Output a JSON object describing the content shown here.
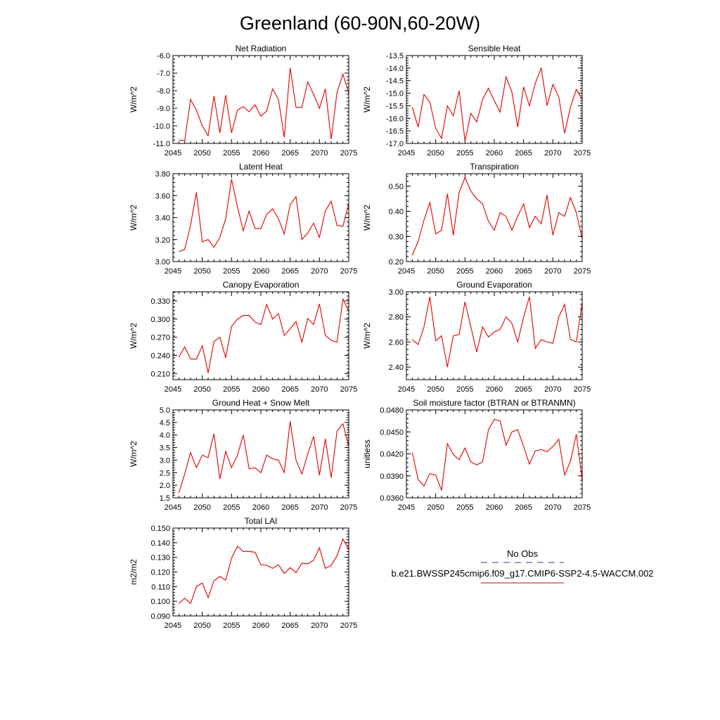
{
  "figure": {
    "title": "Greenland (60-90N,60-20W)"
  },
  "legend": {
    "entries": [
      {
        "label": "No Obs",
        "color": "#3333aa",
        "style": "dashed"
      },
      {
        "label": "b.e21.BWSSP245cmip6.f09_g17.CMIP6-SSP2-4.5-WACCM.002",
        "color": "#e00000",
        "style": "solid"
      }
    ]
  },
  "chart_data": [
    {
      "type": "line",
      "title": "Net Radiation",
      "ylabel": "W/m^2",
      "xlim": [
        2045,
        2075
      ],
      "ylim": [
        -11.0,
        -6.0
      ],
      "yticks": [
        "-6.0",
        "-7.0",
        "-8.0",
        "-9.0",
        "-10.0",
        "-11.0"
      ],
      "xticks": [
        "2045",
        "2050",
        "2055",
        "2060",
        "2065",
        "2070",
        "2075"
      ],
      "series": [
        {
          "color": "#e00000",
          "x": [
            2046,
            2047,
            2048,
            2049,
            2050,
            2051,
            2052,
            2053,
            2054,
            2055,
            2056,
            2057,
            2058,
            2059,
            2060,
            2061,
            2062,
            2063,
            2064,
            2065,
            2066,
            2067,
            2068,
            2069,
            2070,
            2071,
            2072,
            2073,
            2074,
            2075
          ],
          "values": [
            -10.8,
            -10.85,
            -8.5,
            -9.1,
            -10.0,
            -10.55,
            -8.3,
            -10.4,
            -8.25,
            -10.4,
            -9.1,
            -8.9,
            -9.2,
            -8.8,
            -9.45,
            -9.15,
            -7.9,
            -8.5,
            -10.65,
            -6.7,
            -8.95,
            -8.95,
            -7.5,
            -8.2,
            -9.0,
            -7.9,
            -10.75,
            -8.1,
            -7.05,
            -8.15
          ]
        }
      ]
    },
    {
      "type": "line",
      "title": "Sensible Heat",
      "ylabel": "W/m^2",
      "xlim": [
        2045,
        2075
      ],
      "ylim": [
        -17.0,
        -13.5
      ],
      "yticks": [
        "-13.5",
        "-14.0",
        "-14.5",
        "-15.0",
        "-15.5",
        "-16.0",
        "-16.5",
        "-17.0"
      ],
      "xticks": [
        "2045",
        "2050",
        "2055",
        "2060",
        "2065",
        "2070",
        "2075"
      ],
      "series": [
        {
          "color": "#e00000",
          "x": [
            2046,
            2047,
            2048,
            2049,
            2050,
            2051,
            2052,
            2053,
            2054,
            2055,
            2056,
            2057,
            2058,
            2059,
            2060,
            2061,
            2062,
            2063,
            2064,
            2065,
            2066,
            2067,
            2068,
            2069,
            2070,
            2071,
            2072,
            2073,
            2074,
            2075
          ],
          "values": [
            -15.55,
            -16.35,
            -15.05,
            -15.35,
            -16.4,
            -16.8,
            -15.5,
            -15.9,
            -14.9,
            -16.9,
            -15.8,
            -16.15,
            -15.25,
            -14.8,
            -15.3,
            -15.75,
            -14.35,
            -14.95,
            -16.35,
            -14.75,
            -15.5,
            -14.6,
            -14.0,
            -15.5,
            -14.65,
            -15.15,
            -16.6,
            -15.55,
            -14.85,
            -15.25
          ]
        }
      ]
    },
    {
      "type": "line",
      "title": "Latent Heat",
      "ylabel": "W/m^2",
      "xlim": [
        2045,
        2075
      ],
      "ylim": [
        3.0,
        3.8
      ],
      "yticks": [
        "3.80",
        "3.60",
        "3.40",
        "3.20",
        "3.00"
      ],
      "xticks": [
        "2045",
        "2050",
        "2055",
        "2060",
        "2065",
        "2070",
        "2075"
      ],
      "series": [
        {
          "color": "#e00000",
          "x": [
            2046,
            2047,
            2048,
            2049,
            2050,
            2051,
            2052,
            2053,
            2054,
            2055,
            2056,
            2057,
            2058,
            2059,
            2060,
            2061,
            2062,
            2063,
            2064,
            2065,
            2066,
            2067,
            2068,
            2069,
            2070,
            2071,
            2072,
            2073,
            2074,
            2075
          ],
          "values": [
            3.09,
            3.11,
            3.33,
            3.63,
            3.18,
            3.2,
            3.13,
            3.22,
            3.39,
            3.75,
            3.5,
            3.28,
            3.46,
            3.3,
            3.3,
            3.43,
            3.48,
            3.39,
            3.25,
            3.52,
            3.59,
            3.2,
            3.26,
            3.35,
            3.22,
            3.46,
            3.55,
            3.33,
            3.32,
            3.53
          ]
        }
      ]
    },
    {
      "type": "line",
      "title": "Transpiration",
      "ylabel": "W/m^2",
      "xlim": [
        2045,
        2075
      ],
      "ylim": [
        0.2,
        0.55
      ],
      "yticks": [
        "0.50",
        "0.40",
        "0.30",
        "0.20"
      ],
      "xticks": [
        "2045",
        "2050",
        "2055",
        "2060",
        "2065",
        "2070",
        "2075"
      ],
      "series": [
        {
          "color": "#e00000",
          "x": [
            2046,
            2047,
            2048,
            2049,
            2050,
            2051,
            2052,
            2053,
            2054,
            2055,
            2056,
            2057,
            2058,
            2059,
            2060,
            2061,
            2062,
            2063,
            2064,
            2065,
            2066,
            2067,
            2068,
            2069,
            2070,
            2071,
            2072,
            2073,
            2074,
            2075
          ],
          "values": [
            0.225,
            0.28,
            0.365,
            0.435,
            0.31,
            0.325,
            0.47,
            0.305,
            0.475,
            0.535,
            0.48,
            0.45,
            0.43,
            0.36,
            0.325,
            0.395,
            0.38,
            0.325,
            0.38,
            0.43,
            0.335,
            0.38,
            0.35,
            0.465,
            0.305,
            0.395,
            0.38,
            0.455,
            0.395,
            0.29
          ]
        }
      ]
    },
    {
      "type": "line",
      "title": "Canopy Evaporation",
      "ylabel": "W/m^2",
      "xlim": [
        2045,
        2075
      ],
      "ylim": [
        0.2,
        0.345
      ],
      "yticks": [
        "0.330",
        "0.300",
        "0.270",
        "0.240",
        "0.210"
      ],
      "xticks": [
        "2045",
        "2050",
        "2055",
        "2060",
        "2065",
        "2070",
        "2075"
      ],
      "series": [
        {
          "color": "#e00000",
          "x": [
            2046,
            2047,
            2048,
            2049,
            2050,
            2051,
            2052,
            2053,
            2054,
            2055,
            2056,
            2057,
            2058,
            2059,
            2060,
            2061,
            2062,
            2063,
            2064,
            2065,
            2066,
            2067,
            2068,
            2069,
            2070,
            2071,
            2072,
            2073,
            2074,
            2075
          ],
          "values": [
            0.237,
            0.254,
            0.234,
            0.234,
            0.256,
            0.211,
            0.263,
            0.27,
            0.236,
            0.288,
            0.3,
            0.306,
            0.306,
            0.295,
            0.291,
            0.324,
            0.3,
            0.309,
            0.273,
            0.284,
            0.296,
            0.262,
            0.301,
            0.291,
            0.325,
            0.273,
            0.265,
            0.262,
            0.333,
            0.313
          ]
        }
      ]
    },
    {
      "type": "line",
      "title": "Ground Evaporation",
      "ylabel": "W/m^2",
      "xlim": [
        2045,
        2075
      ],
      "ylim": [
        2.3,
        3.0
      ],
      "yticks": [
        "3.00",
        "2.80",
        "2.60",
        "2.40"
      ],
      "xticks": [
        "2045",
        "2050",
        "2055",
        "2060",
        "2065",
        "2070",
        "2075"
      ],
      "series": [
        {
          "color": "#e00000",
          "x": [
            2046,
            2047,
            2048,
            2049,
            2050,
            2051,
            2052,
            2053,
            2054,
            2055,
            2056,
            2057,
            2058,
            2059,
            2060,
            2061,
            2062,
            2063,
            2064,
            2065,
            2066,
            2067,
            2068,
            2069,
            2070,
            2071,
            2072,
            2073,
            2074,
            2075
          ],
          "values": [
            2.62,
            2.58,
            2.72,
            2.96,
            2.61,
            2.65,
            2.4,
            2.65,
            2.66,
            2.92,
            2.72,
            2.52,
            2.72,
            2.64,
            2.68,
            2.7,
            2.8,
            2.75,
            2.6,
            2.8,
            2.96,
            2.55,
            2.62,
            2.6,
            2.59,
            2.8,
            2.9,
            2.62,
            2.6,
            2.91
          ]
        }
      ]
    },
    {
      "type": "line",
      "title": "Ground Heat + Snow Melt",
      "ylabel": "W/m^2",
      "xlim": [
        2045,
        2075
      ],
      "ylim": [
        1.5,
        5.0
      ],
      "yticks": [
        "5.0",
        "4.5",
        "4.0",
        "3.5",
        "3.0",
        "2.5",
        "2.0",
        "1.5"
      ],
      "xticks": [
        "2045",
        "2050",
        "2055",
        "2060",
        "2065",
        "2070",
        "2075"
      ],
      "series": [
        {
          "color": "#e00000",
          "x": [
            2046,
            2047,
            2048,
            2049,
            2050,
            2051,
            2052,
            2053,
            2054,
            2055,
            2056,
            2057,
            2058,
            2059,
            2060,
            2061,
            2062,
            2063,
            2064,
            2065,
            2066,
            2067,
            2068,
            2069,
            2070,
            2071,
            2072,
            2073,
            2074,
            2075
          ],
          "values": [
            1.7,
            2.45,
            3.3,
            2.7,
            3.2,
            3.1,
            4.05,
            2.25,
            3.35,
            2.7,
            3.2,
            4.0,
            2.65,
            2.7,
            2.5,
            3.2,
            3.05,
            3.0,
            2.5,
            4.55,
            3.0,
            2.45,
            3.25,
            3.95,
            2.4,
            3.85,
            2.3,
            4.15,
            4.45,
            3.55
          ]
        }
      ]
    },
    {
      "type": "line",
      "title": "Soil moisture factor (BTRAN or BTRANMN)",
      "ylabel": "unitless",
      "xlim": [
        2045,
        2075
      ],
      "ylim": [
        0.036,
        0.048
      ],
      "yticks": [
        "0.0480",
        "0.0450",
        "0.0420",
        "0.0390",
        "0.0360"
      ],
      "xticks": [
        "2045",
        "2050",
        "2055",
        "2060",
        "2065",
        "2070",
        "2075"
      ],
      "series": [
        {
          "color": "#e00000",
          "x": [
            2046,
            2047,
            2048,
            2049,
            2050,
            2051,
            2052,
            2053,
            2054,
            2055,
            2056,
            2057,
            2058,
            2059,
            2060,
            2061,
            2062,
            2063,
            2064,
            2065,
            2066,
            2067,
            2068,
            2069,
            2070,
            2071,
            2072,
            2073,
            2074,
            2075
          ],
          "values": [
            0.0422,
            0.0385,
            0.0376,
            0.0393,
            0.0391,
            0.037,
            0.0434,
            0.0419,
            0.0412,
            0.0428,
            0.0409,
            0.0405,
            0.0409,
            0.0453,
            0.0467,
            0.0465,
            0.0432,
            0.045,
            0.0453,
            0.043,
            0.0406,
            0.0424,
            0.0426,
            0.0423,
            0.043,
            0.044,
            0.0391,
            0.041,
            0.0447,
            0.0384
          ]
        }
      ]
    },
    {
      "type": "line",
      "title": "Total LAI",
      "ylabel": "m2/m2",
      "xlim": [
        2045,
        2075
      ],
      "ylim": [
        0.09,
        0.15
      ],
      "yticks": [
        "0.150",
        "0.140",
        "0.130",
        "0.120",
        "0.110",
        "0.100",
        "0.090"
      ],
      "xticks": [
        "2045",
        "2050",
        "2055",
        "2060",
        "2065",
        "2070",
        "2075"
      ],
      "series": [
        {
          "color": "#e00000",
          "x": [
            2046,
            2047,
            2048,
            2049,
            2050,
            2051,
            2052,
            2053,
            2054,
            2055,
            2056,
            2057,
            2058,
            2059,
            2060,
            2061,
            2062,
            2063,
            2064,
            2065,
            2066,
            2067,
            2068,
            2069,
            2070,
            2071,
            2072,
            2073,
            2074,
            2075
          ],
          "values": [
            0.0985,
            0.102,
            0.0985,
            0.11,
            0.1125,
            0.1025,
            0.114,
            0.117,
            0.1145,
            0.1295,
            0.1375,
            0.134,
            0.134,
            0.1335,
            0.125,
            0.1245,
            0.1225,
            0.125,
            0.119,
            0.123,
            0.1195,
            0.126,
            0.1255,
            0.128,
            0.1365,
            0.1225,
            0.1245,
            0.131,
            0.1425,
            0.1355
          ]
        }
      ]
    }
  ]
}
